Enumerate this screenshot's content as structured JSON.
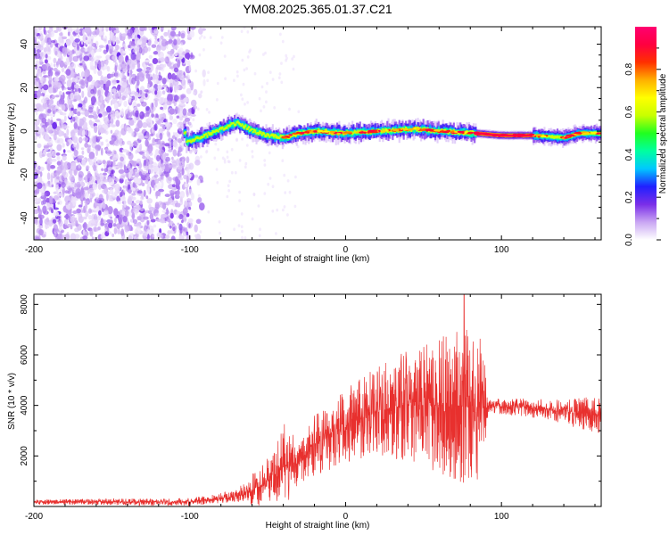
{
  "title": "YM08.2025.365.01.37.C21",
  "chart_data": [
    {
      "type": "heatmap",
      "title": "YM08.2025.365.01.37.C21",
      "xlabel": "Height of straight line (km)",
      "ylabel": "Frequency (Hz)",
      "xlim": [
        -200,
        164
      ],
      "ylim": [
        -50,
        48
      ],
      "x_ticks": [
        "-200",
        "-100",
        "0",
        "100"
      ],
      "y_ticks": [
        "-40",
        "-20",
        "0",
        "20",
        "40"
      ],
      "noise_region_x": [
        -200,
        -90
      ],
      "signal_center_hz": [
        {
          "x": -103,
          "y": -5
        },
        {
          "x": -90,
          "y": -2
        },
        {
          "x": -80,
          "y": 1
        },
        {
          "x": -70,
          "y": 4
        },
        {
          "x": -60,
          "y": 0
        },
        {
          "x": -50,
          "y": -2
        },
        {
          "x": -40,
          "y": -3
        },
        {
          "x": -30,
          "y": -1
        },
        {
          "x": -20,
          "y": 0
        },
        {
          "x": 0,
          "y": -1
        },
        {
          "x": 20,
          "y": 0
        },
        {
          "x": 45,
          "y": 1
        },
        {
          "x": 60,
          "y": 0
        },
        {
          "x": 83,
          "y": -1
        },
        {
          "x": 100,
          "y": -2
        },
        {
          "x": 120,
          "y": -2
        },
        {
          "x": 140,
          "y": -3
        },
        {
          "x": 150,
          "y": -1
        },
        {
          "x": 164,
          "y": -1
        }
      ],
      "colorbar": {
        "label": "Normalized spectral amplitude",
        "range": [
          0,
          1
        ],
        "ticks": [
          "0.0",
          "0.2",
          "0.4",
          "0.6",
          "0.8"
        ],
        "colors": [
          "#ffffff",
          "#c9a6f3",
          "#7a2ee8",
          "#2020ff",
          "#00c8ff",
          "#00ffa0",
          "#20ff20",
          "#c8ff00",
          "#ffff00",
          "#ffb000",
          "#ff3000",
          "#ff0040",
          "#ff0070"
        ]
      }
    },
    {
      "type": "line",
      "xlabel": "Height of straight line (km)",
      "ylabel": "SNR (10 * v/v)",
      "xlim": [
        -200,
        164
      ],
      "ylim": [
        0,
        8400
      ],
      "x_ticks": [
        "-200",
        "-100",
        "0",
        "100"
      ],
      "y_ticks": [
        "2000",
        "4000",
        "6000",
        "8000"
      ],
      "series": [
        {
          "name": "SNR",
          "color": "#e8302e",
          "envelope": [
            {
              "x": -200,
              "mean": 180,
              "amp": 100
            },
            {
              "x": -100,
              "mean": 180,
              "amp": 150
            },
            {
              "x": -70,
              "mean": 400,
              "amp": 250
            },
            {
              "x": -55,
              "mean": 800,
              "amp": 800
            },
            {
              "x": -45,
              "mean": 1300,
              "amp": 1000
            },
            {
              "x": -40,
              "mean": 1600,
              "amp": 1800
            },
            {
              "x": -30,
              "mean": 1700,
              "amp": 800
            },
            {
              "x": -20,
              "mean": 2400,
              "amp": 1200
            },
            {
              "x": 0,
              "mean": 3200,
              "amp": 1500
            },
            {
              "x": 20,
              "mean": 3800,
              "amp": 1800
            },
            {
              "x": 40,
              "mean": 4000,
              "amp": 2200
            },
            {
              "x": 60,
              "mean": 4000,
              "amp": 2700
            },
            {
              "x": 75,
              "mean": 4000,
              "amp": 3200
            },
            {
              "x": 88,
              "mean": 3900,
              "amp": 3000
            },
            {
              "x": 92,
              "mean": 4000,
              "amp": 300
            },
            {
              "x": 130,
              "mean": 3850,
              "amp": 400
            },
            {
              "x": 164,
              "mean": 3600,
              "amp": 800
            }
          ],
          "peak": {
            "x": 76,
            "y": 8400
          }
        }
      ]
    }
  ]
}
